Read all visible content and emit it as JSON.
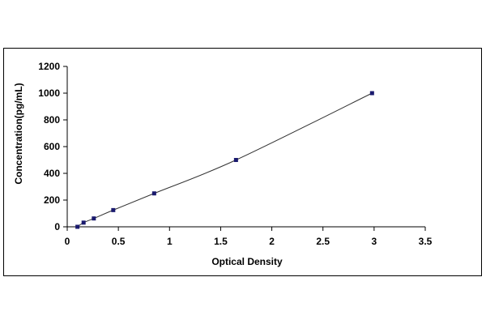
{
  "chart_data": {
    "type": "scatter",
    "title": "",
    "xlabel": "Optical Density",
    "ylabel": "Concentration(pg/mL)",
    "xlim": [
      0,
      3.5
    ],
    "ylim": [
      0,
      1200
    ],
    "x_ticks": [
      0,
      0.5,
      1,
      1.5,
      2,
      2.5,
      3,
      3.5
    ],
    "x_tick_labels": [
      "0",
      "0.5",
      "1",
      "1.5",
      "2",
      "2.5",
      "3",
      "3.5"
    ],
    "y_ticks": [
      0,
      200,
      400,
      600,
      800,
      1000,
      1200
    ],
    "y_tick_labels": [
      "0",
      "200",
      "400",
      "600",
      "800",
      "1000",
      "1200"
    ],
    "grid": false,
    "legend": "none",
    "series": [
      {
        "points": [
          {
            "x": 0.1,
            "y": 0
          },
          {
            "x": 0.16,
            "y": 31.25
          },
          {
            "x": 0.26,
            "y": 62.5
          },
          {
            "x": 0.45,
            "y": 125
          },
          {
            "x": 0.85,
            "y": 250
          },
          {
            "x": 1.65,
            "y": 500
          },
          {
            "x": 2.98,
            "y": 1000
          }
        ],
        "trendline": true,
        "marker_color": "#1a1a6e",
        "line_color": "#333333"
      }
    ]
  }
}
